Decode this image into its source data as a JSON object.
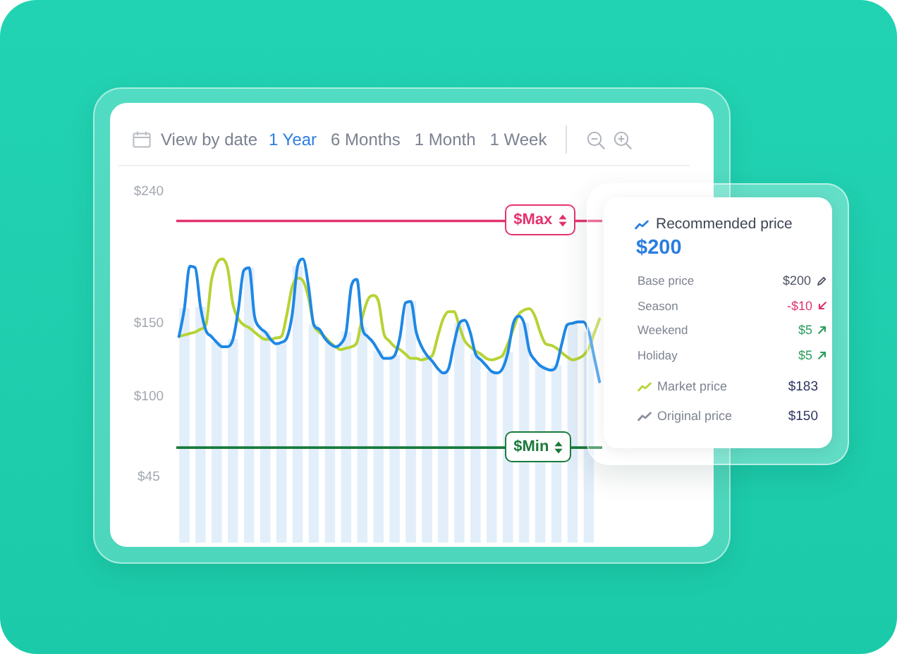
{
  "chart_data": [
    {
      "type": "other",
      "title": "View by date",
      "categories": [
        "1 Year",
        "6 Months",
        "1 Month",
        "1 Week"
      ],
      "colors": [
        "#2f7ee3",
        "#7b8190",
        "#7b8190",
        "#7b8190"
      ]
    },
    {
      "type": "line",
      "categories": [
        null,
        null,
        null,
        null,
        null,
        null,
        null,
        null,
        null,
        null,
        null,
        null,
        null,
        null,
        null,
        null,
        null,
        null,
        null,
        null,
        null,
        null,
        null,
        null,
        null,
        null,
        null,
        null,
        null,
        null,
        null,
        null,
        null,
        null,
        null,
        null,
        null,
        null,
        null,
        null,
        null,
        null,
        null,
        null,
        null,
        null,
        null,
        null,
        null,
        null,
        null,
        null,
        null,
        null,
        null,
        null,
        null,
        null,
        null,
        null,
        null,
        null,
        null,
        null,
        null,
        null,
        null,
        null,
        null,
        null,
        null,
        null,
        null,
        null,
        null,
        null,
        null,
        null,
        null
      ],
      "series": [
        {
          "type": "bar",
          "color": "#e3eefb",
          "values": [
            null,
            160,
            null,
            null,
            161,
            null,
            null,
            137,
            null,
            null,
            139,
            null,
            null,
            188,
            null,
            null,
            144,
            null,
            null,
            137,
            null,
            null,
            189,
            null,
            null,
            149,
            null,
            null,
            136,
            null,
            null,
            144,
            null,
            null,
            147,
            null,
            null,
            131,
            null,
            null,
            128,
            null,
            null,
            165,
            null,
            null,
            128,
            null,
            null,
            116,
            null,
            null,
            150,
            null,
            null,
            129,
            null,
            null,
            117,
            null,
            null,
            130,
            null,
            null,
            150,
            null,
            null,
            121,
            null,
            null,
            121,
            null,
            null,
            150,
            null,
            null,
            144,
            null,
            null
          ]
        },
        {
          "color": "#1e88e5",
          "values": [
            141,
            160,
            189,
            188,
            161,
            145,
            141,
            137,
            134,
            134,
            139,
            159,
            186,
            188,
            155,
            147,
            144,
            139,
            136,
            137,
            140,
            156,
            189,
            194,
            176,
            149,
            146,
            140,
            136,
            134,
            136,
            144,
            176,
            180,
            147,
            141,
            137,
            131,
            126,
            126,
            128,
            141,
            164,
            165,
            144,
            134,
            128,
            124,
            119,
            116,
            119,
            136,
            150,
            152,
            144,
            129,
            125,
            121,
            117,
            116,
            119,
            130,
            150,
            155,
            150,
            131,
            125,
            121,
            119,
            118,
            121,
            136,
            149,
            150,
            151,
            151,
            144,
            127,
            110
          ]
        },
        {
          "color": "#b5d335",
          "values": [
            141,
            142,
            143,
            144,
            146,
            149,
            179,
            191,
            194,
            188,
            163,
            153,
            149,
            147,
            144,
            141,
            139,
            139,
            140,
            141,
            156,
            175,
            181,
            179,
            168,
            149,
            144,
            141,
            137,
            134,
            132,
            133,
            134,
            137,
            154,
            166,
            169,
            165,
            143,
            138,
            134,
            132,
            129,
            126,
            126,
            125,
            126,
            128,
            141,
            153,
            158,
            158,
            148,
            138,
            134,
            131,
            129,
            126,
            125,
            126,
            128,
            136,
            146,
            156,
            159,
            160,
            155,
            144,
            136,
            135,
            133,
            130,
            127,
            125,
            126,
            128,
            133,
            143,
            153
          ]
        }
      ],
      "ylim": [
        0,
        240
      ],
      "yticks": [
        {
          "value": 45,
          "label": "$45"
        },
        {
          "value": 100,
          "label": "$100"
        },
        {
          "value": 150,
          "label": "$150"
        },
        {
          "value": 240,
          "label": "$240"
        }
      ],
      "ref_lines": [
        {
          "axis": "y",
          "value": 220,
          "label": "$Max",
          "color": "#e3336f"
        },
        {
          "axis": "y",
          "value": 65,
          "label": "$Min",
          "color": "#1b7a3b"
        }
      ],
      "marker": "none",
      "tick_labels": "y"
    },
    {
      "type": "other",
      "title": "Recommended price",
      "subtitle": "$200",
      "categories": [
        "Base price",
        "Season",
        "Weekend",
        "Holiday",
        "Market price",
        "Original price"
      ],
      "value_labels": [
        "$200",
        "-$10",
        "$5",
        "$5",
        "$183",
        "$150"
      ]
    }
  ]
}
